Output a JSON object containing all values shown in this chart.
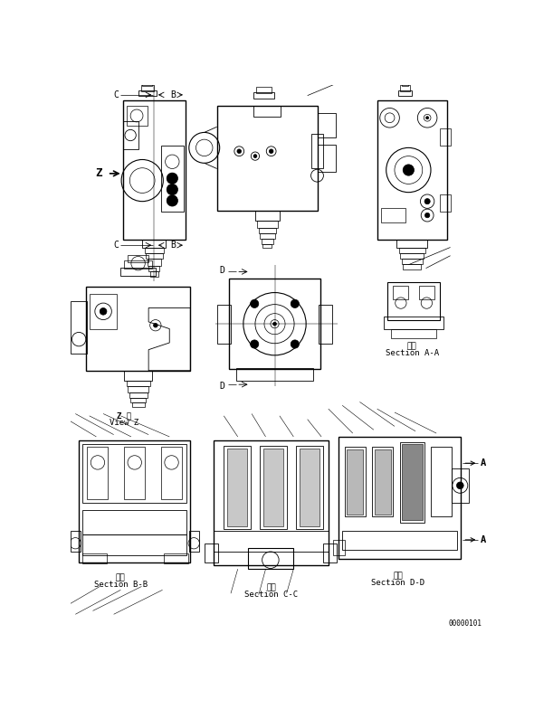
{
  "bg_color": "#ffffff",
  "line_color": "#000000",
  "fig_width": 6.11,
  "fig_height": 7.84,
  "dpi": 100,
  "labels": {
    "C_top": "C",
    "B_top": "B",
    "Z_arrow": "Z",
    "C_bot": "C",
    "B_bot": "B",
    "D_top": "D",
    "D_bot": "D",
    "section_aa_jp": "断面",
    "section_aa": "Section A-A",
    "view_z_jp": "Z 視",
    "view_z": "View Z",
    "section_bb_jp": "断面",
    "section_bb": "Section B-B",
    "section_cc_jp": "断面",
    "section_cc": "Section C-C",
    "section_dd_jp": "断面",
    "section_dd": "Section D-D",
    "part_no": "00000101",
    "A_right": "A",
    "A_left": "A"
  }
}
